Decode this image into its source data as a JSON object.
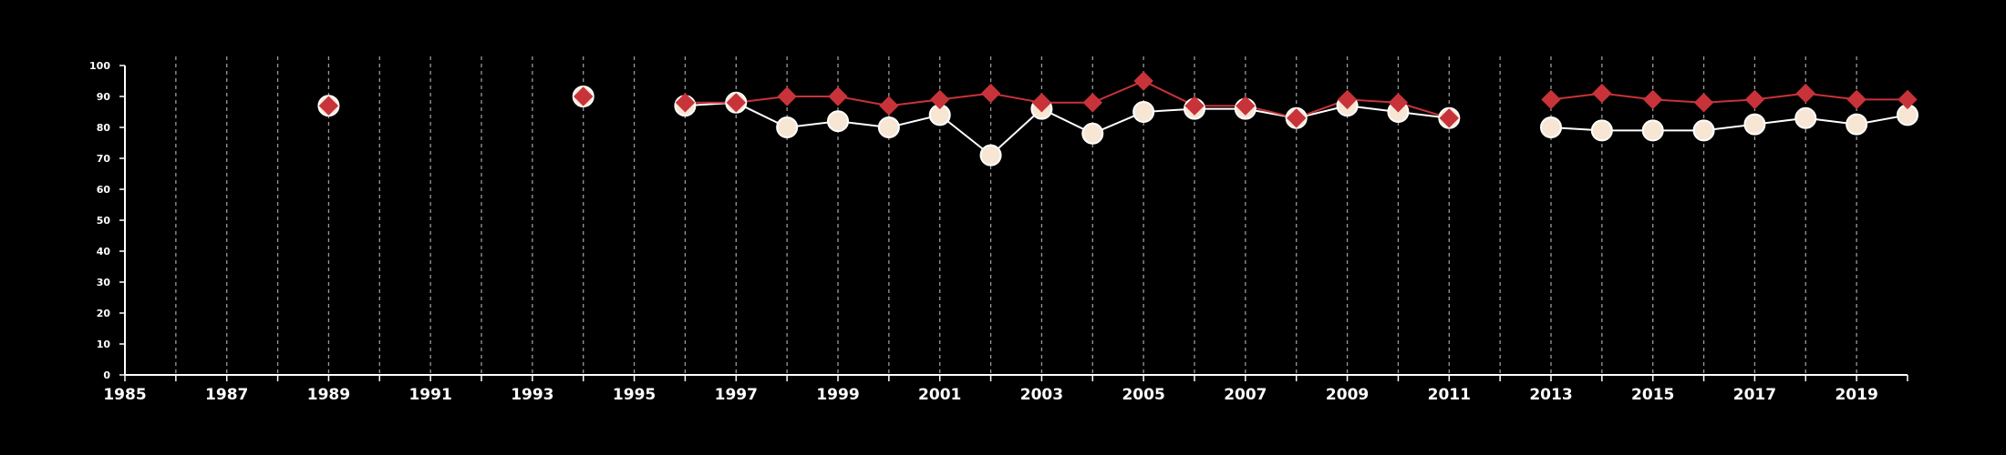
{
  "chart_data": {
    "type": "line",
    "title": "",
    "xlabel": "",
    "ylabel": "",
    "xlim": [
      1985,
      2020
    ],
    "ylim": [
      0,
      100
    ],
    "y_ticks": [
      "0",
      "10",
      "20",
      "30",
      "40",
      "50",
      "60",
      "70",
      "80",
      "90",
      "100"
    ],
    "x_ticks": [
      "1985",
      "1987",
      "1989",
      "1991",
      "1993",
      "1995",
      "1997",
      "1999",
      "2001",
      "2003",
      "2005",
      "2007",
      "2009",
      "2011",
      "2013",
      "2015",
      "2017",
      "2019"
    ],
    "grid": "vertical dashed",
    "background": "#000000",
    "series": [
      {
        "marker": "circle",
        "color": "#ffffff",
        "fill": "#f7e6d4",
        "points": [
          [
            1989,
            87
          ],
          [
            1994,
            90
          ],
          [
            1996,
            87
          ],
          [
            1997,
            88
          ],
          [
            1998,
            80
          ],
          [
            1999,
            82
          ],
          [
            2000,
            80
          ],
          [
            2001,
            84
          ],
          [
            2002,
            71
          ],
          [
            2003,
            86
          ],
          [
            2004,
            78
          ],
          [
            2005,
            85
          ],
          [
            2006,
            86
          ],
          [
            2007,
            86
          ],
          [
            2008,
            83
          ],
          [
            2009,
            87
          ],
          [
            2010,
            85
          ],
          [
            2011,
            83
          ],
          [
            2013,
            80
          ],
          [
            2014,
            79
          ],
          [
            2015,
            79
          ],
          [
            2016,
            79
          ],
          [
            2017,
            81
          ],
          [
            2018,
            83
          ],
          [
            2019,
            81
          ],
          [
            2020,
            84
          ]
        ],
        "segments": [
          [
            1996,
            2011
          ],
          [
            2013,
            2020
          ]
        ]
      },
      {
        "marker": "diamond",
        "color": "#c8333a",
        "fill": "#c8333a",
        "points": [
          [
            1989,
            87
          ],
          [
            1994,
            90
          ],
          [
            1996,
            88
          ],
          [
            1997,
            88
          ],
          [
            1998,
            90
          ],
          [
            1999,
            90
          ],
          [
            2000,
            87
          ],
          [
            2001,
            89
          ],
          [
            2002,
            91
          ],
          [
            2003,
            88
          ],
          [
            2004,
            88
          ],
          [
            2005,
            95
          ],
          [
            2006,
            87
          ],
          [
            2007,
            87
          ],
          [
            2008,
            83
          ],
          [
            2009,
            89
          ],
          [
            2010,
            88
          ],
          [
            2011,
            83
          ],
          [
            2013,
            89
          ],
          [
            2014,
            91
          ],
          [
            2015,
            89
          ],
          [
            2016,
            88
          ],
          [
            2017,
            89
          ],
          [
            2018,
            91
          ],
          [
            2019,
            89
          ],
          [
            2020,
            89
          ]
        ],
        "segments": [
          [
            1996,
            2011
          ],
          [
            2013,
            2020
          ]
        ]
      }
    ]
  }
}
